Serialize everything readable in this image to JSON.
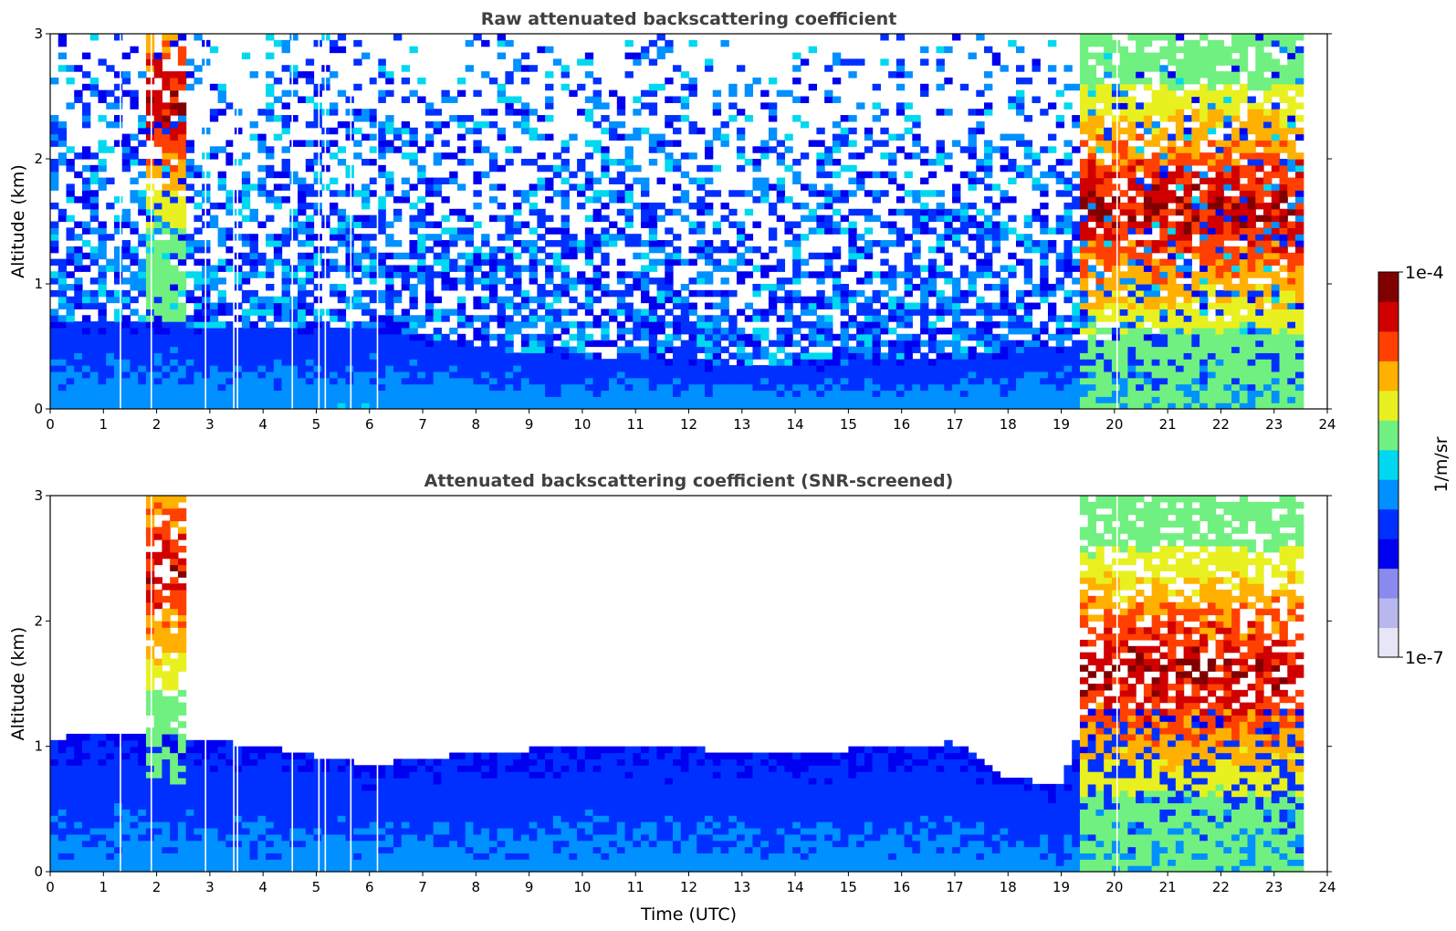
{
  "chart_data": [
    {
      "type": "heatmap",
      "title": "Raw attenuated backscattering coefficient",
      "xlabel": "",
      "ylabel": "Altitude (km)",
      "xlim": [
        0,
        24
      ],
      "ylim": [
        0,
        3
      ],
      "x_ticks": [
        "0",
        "1",
        "2",
        "3",
        "4",
        "5",
        "6",
        "7",
        "8",
        "9",
        "10",
        "11",
        "12",
        "13",
        "14",
        "15",
        "16",
        "17",
        "18",
        "19",
        "20",
        "21",
        "22",
        "23",
        "24"
      ],
      "y_ticks": [
        "0",
        "1",
        "2",
        "3"
      ],
      "data_end_time": 23.6,
      "dropout_times": [
        1.32,
        1.9,
        2.92,
        3.45,
        3.52,
        4.55,
        5.05,
        5.17,
        5.65,
        6.15,
        20.05
      ],
      "boundary_layer_top_km": [
        [
          0,
          0.7
        ],
        [
          2,
          0.68
        ],
        [
          4,
          0.65
        ],
        [
          6,
          0.66
        ],
        [
          7,
          0.6
        ],
        [
          8,
          0.5
        ],
        [
          10,
          0.42
        ],
        [
          12,
          0.38
        ],
        [
          14,
          0.36
        ],
        [
          16,
          0.38
        ],
        [
          18,
          0.45
        ],
        [
          19.5,
          0.55
        ],
        [
          20.5,
          0.6
        ]
      ],
      "cloud_layers": [
        {
          "t0": 1.75,
          "t1": 2.55,
          "z_top": 3.0,
          "z_bottom": 0.7,
          "peak_km": 2.45
        },
        {
          "t0": 19.4,
          "t1": 23.6,
          "z_top": 3.0,
          "z_bottom": 0.0,
          "peak_km": 1.6
        }
      ]
    },
    {
      "type": "heatmap",
      "title": "Attenuated backscattering coefficient (SNR-screened)",
      "xlabel": "Time (UTC)",
      "ylabel": "Altitude (km)",
      "xlim": [
        0,
        24
      ],
      "ylim": [
        0,
        3
      ],
      "x_ticks": [
        "0",
        "1",
        "2",
        "3",
        "4",
        "5",
        "6",
        "7",
        "8",
        "9",
        "10",
        "11",
        "12",
        "13",
        "14",
        "15",
        "16",
        "17",
        "18",
        "19",
        "20",
        "21",
        "22",
        "23",
        "24"
      ],
      "y_ticks": [
        "0",
        "1",
        "2",
        "3"
      ],
      "data_end_time": 23.6,
      "dropout_times": [
        1.32,
        1.9,
        2.92,
        3.45,
        3.52,
        4.55,
        5.05,
        5.17,
        5.65,
        6.15,
        20.05
      ],
      "screened_top_km": [
        [
          0,
          1.07
        ],
        [
          2,
          1.1
        ],
        [
          4,
          1.0
        ],
        [
          6,
          0.85
        ],
        [
          8,
          0.95
        ],
        [
          10,
          1.0
        ],
        [
          12,
          0.98
        ],
        [
          14,
          0.95
        ],
        [
          16,
          1.0
        ],
        [
          17,
          1.03
        ],
        [
          18,
          0.75
        ],
        [
          19,
          0.7
        ],
        [
          19.5,
          1.3
        ],
        [
          20.5,
          1.3
        ]
      ],
      "cloud_layers": [
        {
          "t0": 1.75,
          "t1": 2.55,
          "z_top": 3.0,
          "z_bottom": 0.7,
          "peak_km": 2.45
        },
        {
          "t0": 19.4,
          "t1": 23.6,
          "z_top": 3.0,
          "z_bottom": 0.0,
          "peak_km": 1.6
        }
      ]
    }
  ],
  "colorbar": {
    "label": "1/m/sr",
    "max_label": "1e-4",
    "min_label": "1e-7",
    "scale": "log",
    "colormap": "jet",
    "colors": [
      "#e6e6f6",
      "#b8b8ee",
      "#8a8aee",
      "#0000f0",
      "#0030ff",
      "#0090ff",
      "#00d8f0",
      "#70f080",
      "#e8f020",
      "#ffb000",
      "#ff4000",
      "#d00000",
      "#800000"
    ]
  }
}
